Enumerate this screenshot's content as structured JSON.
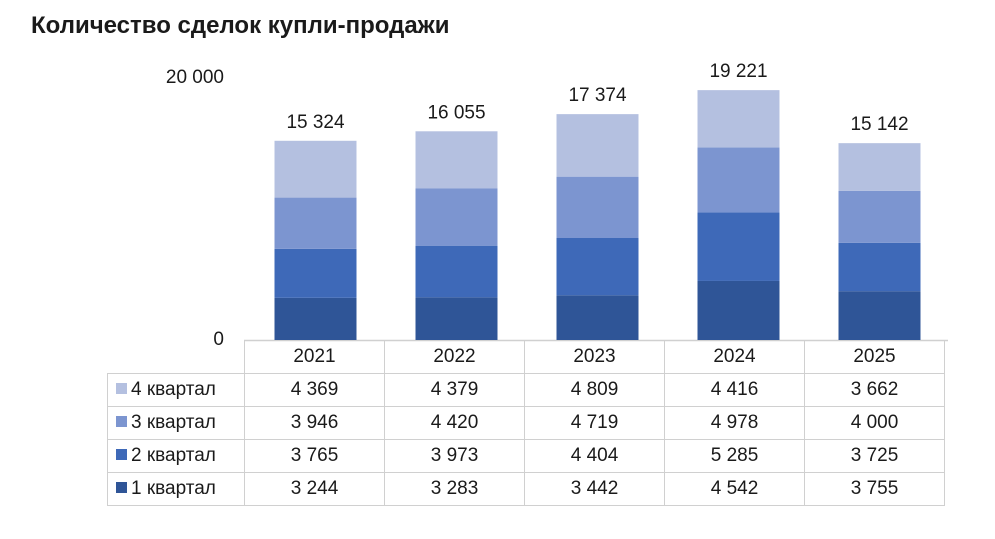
{
  "chart_data": {
    "type": "bar",
    "stacked": true,
    "title": "Количество сделок купли-продажи",
    "categories": [
      "2021",
      "2022",
      "2023",
      "2024",
      "2025"
    ],
    "yticks": [
      "0",
      "20 000"
    ],
    "ylim": [
      0,
      20000
    ],
    "totals": [
      "15 324",
      "16 055",
      "17 374",
      "19 221",
      "15 142"
    ],
    "total_values": [
      15324,
      16055,
      17374,
      19221,
      15142
    ],
    "series": [
      {
        "name": "1 квартал",
        "color": "#2F5597",
        "values": [
          3244,
          3283,
          3442,
          4542,
          3755
        ],
        "labels": [
          "3 244",
          "3 283",
          "3 442",
          "4 542",
          "3 755"
        ]
      },
      {
        "name": "2 квартал",
        "color": "#3E69B8",
        "values": [
          3765,
          3973,
          4404,
          5285,
          3725
        ],
        "labels": [
          "3 765",
          "3 973",
          "4 404",
          "5 285",
          "3 725"
        ]
      },
      {
        "name": "3 квартал",
        "color": "#7C95D0",
        "values": [
          3946,
          4420,
          4719,
          4978,
          4000
        ],
        "labels": [
          "3 946",
          "4 420",
          "4 719",
          "4 978",
          "4 000"
        ]
      },
      {
        "name": "4 квартал",
        "color": "#B4C0E0",
        "values": [
          4369,
          4379,
          4809,
          4416,
          3662
        ],
        "labels": [
          "4 369",
          "4 379",
          "4 809",
          "4 416",
          "3 662"
        ]
      }
    ],
    "legend": "data-table",
    "grid": false
  }
}
